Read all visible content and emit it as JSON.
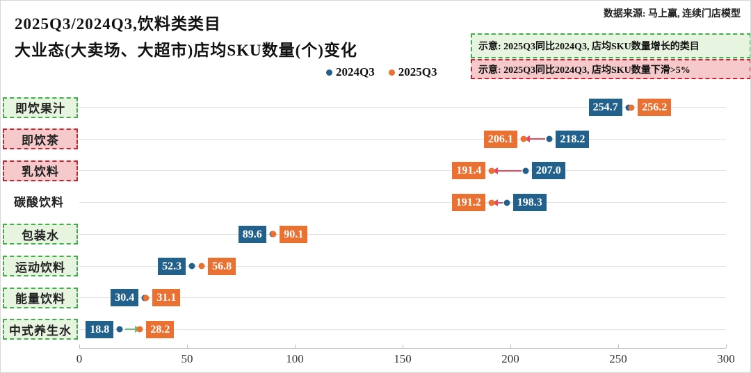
{
  "header": {
    "title_line1": "2025Q3/2024Q3,饮料类类目",
    "title_line2": "大业态(大卖场、大超市)店均SKU数量(个)变化",
    "source": "数据来源: 马上赢, 连续门店模型",
    "legend": [
      {
        "label": "2024Q3",
        "color": "#21618b"
      },
      {
        "label": "2025Q3",
        "color": "#e97132"
      }
    ],
    "note_growth": "示意: 2025Q3同比2024Q3, 店均SKU数量增长的类目",
    "note_decline": "示意: 2025Q3同比2024Q3, 店均SKU数量下滑>5%"
  },
  "chart_data": {
    "type": "dumbbell-arrow",
    "title": "2025Q3/2024Q3,饮料类类目 大业态(大卖场、大超市)店均SKU数量(个)变化",
    "series": [
      "2024Q3",
      "2025Q3"
    ],
    "x_axis": {
      "min": 0,
      "max": 300,
      "ticks": [
        0,
        50,
        100,
        150,
        200,
        250,
        300
      ]
    },
    "rows": [
      {
        "category": "即饮果汁",
        "v2024": 254.7,
        "v2025": 256.2,
        "trend": "up",
        "highlight": "growth"
      },
      {
        "category": "即饮茶",
        "v2024": 218.2,
        "v2025": 206.1,
        "trend": "down",
        "highlight": "decline"
      },
      {
        "category": "乳饮料",
        "v2024": 207.0,
        "v2025": 191.4,
        "trend": "down",
        "highlight": "decline"
      },
      {
        "category": "碳酸饮料",
        "v2024": 198.3,
        "v2025": 191.2,
        "trend": "down",
        "highlight": "none"
      },
      {
        "category": "包装水",
        "v2024": 89.6,
        "v2025": 90.1,
        "trend": "up",
        "highlight": "growth"
      },
      {
        "category": "运动饮料",
        "v2024": 52.3,
        "v2025": 56.8,
        "trend": "up",
        "highlight": "growth"
      },
      {
        "category": "能量饮料",
        "v2024": 30.4,
        "v2025": 31.1,
        "trend": "up",
        "highlight": "growth"
      },
      {
        "category": "中式养生水",
        "v2024": 18.8,
        "v2025": 28.2,
        "trend": "up",
        "highlight": "growth"
      }
    ],
    "colors": {
      "blue_2024": "#21618b",
      "orange_2025": "#e97132",
      "arrow_down": "#e8475c",
      "arrow_up": "#64bd78",
      "grid": "#e2e2e2",
      "growth_fill": "#e7f4e0",
      "growth_border": "#3fae49",
      "decline_fill": "#f6c9ca",
      "decline_border": "#d21f2c"
    },
    "legend_position": "top-center",
    "grid": "horizontal-row-lines"
  }
}
